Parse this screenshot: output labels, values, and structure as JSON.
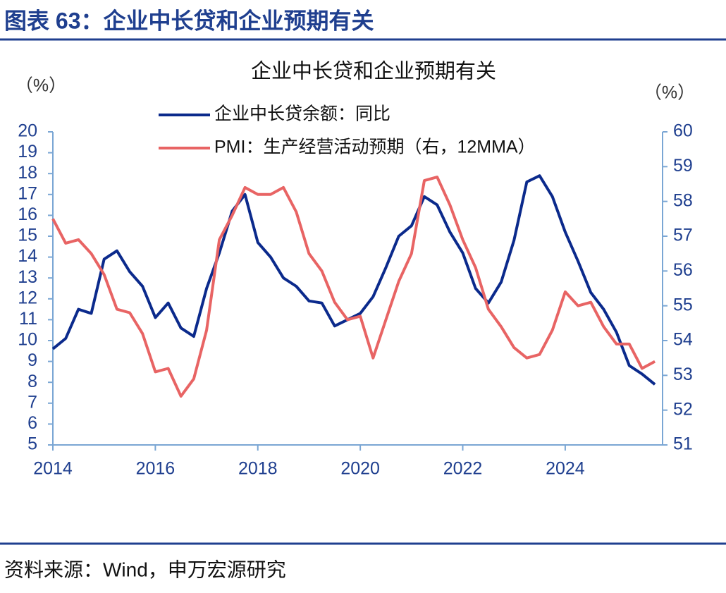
{
  "header": {
    "title": "图表 63：企业中长贷和企业预期有关"
  },
  "footer": {
    "source": "资料来源：Wind，申万宏源研究"
  },
  "chart_data": {
    "type": "line",
    "title": "企业中长贷和企业预期有关",
    "y_label": "（%）",
    "y2_label": "（%）",
    "x": [
      2014,
      2014.25,
      2014.5,
      2014.75,
      2015,
      2015.25,
      2015.5,
      2015.75,
      2016,
      2016.25,
      2016.5,
      2016.75,
      2017,
      2017.25,
      2017.5,
      2017.75,
      2018,
      2018.25,
      2018.5,
      2018.75,
      2019,
      2019.25,
      2019.5,
      2019.75,
      2020,
      2020.25,
      2020.5,
      2020.75,
      2021,
      2021.25,
      2021.5,
      2021.75,
      2022,
      2022.25,
      2022.5,
      2022.75,
      2023,
      2023.25,
      2023.5,
      2023.75,
      2024,
      2024.25,
      2024.5,
      2024.75,
      2025,
      2025.25,
      2025.5,
      2025.75
    ],
    "xlim": [
      2014,
      2025.9
    ],
    "xticks": [
      2014,
      2016,
      2018,
      2020,
      2022,
      2024
    ],
    "ylim": [
      5,
      20
    ],
    "yticks": [
      5,
      6,
      7,
      8,
      9,
      10,
      11,
      12,
      13,
      14,
      15,
      16,
      17,
      18,
      19,
      20
    ],
    "y2lim": [
      51,
      60
    ],
    "y2ticks": [
      51,
      52,
      53,
      54,
      55,
      56,
      57,
      58,
      59,
      60
    ],
    "series": [
      {
        "name": "企业中长贷余额：同比",
        "color": "#0b2a8c",
        "values": [
          9.6,
          10.1,
          11.5,
          11.3,
          13.9,
          14.3,
          13.3,
          12.6,
          11.1,
          11.8,
          10.6,
          10.2,
          12.5,
          14.2,
          16.2,
          17.0,
          14.7,
          14.0,
          13.0,
          12.6,
          11.9,
          11.8,
          10.7,
          11.0,
          11.3,
          12.1,
          13.5,
          15.0,
          15.5,
          16.9,
          16.5,
          15.2,
          14.2,
          12.5,
          11.8,
          12.8,
          14.8,
          17.6,
          17.9,
          16.9,
          15.2,
          13.8,
          12.3,
          11.5,
          10.4,
          8.8,
          8.4,
          7.9
        ]
      },
      {
        "name": "PMI：生产经营活动预期（右，12MMA）",
        "color": "#e86464",
        "axis": "y2",
        "values": [
          57.5,
          56.8,
          56.9,
          56.5,
          55.9,
          54.9,
          54.8,
          54.2,
          53.1,
          53.2,
          52.4,
          52.9,
          54.3,
          56.9,
          57.6,
          58.4,
          58.2,
          58.2,
          58.4,
          57.7,
          56.5,
          56.0,
          55.1,
          54.6,
          54.7,
          53.5,
          54.6,
          55.7,
          56.5,
          58.6,
          58.7,
          57.9,
          56.9,
          56.1,
          54.9,
          54.4,
          53.8,
          53.5,
          53.6,
          54.3,
          55.4,
          55.0,
          55.1,
          54.4,
          53.9,
          53.9,
          53.2,
          53.4
        ]
      }
    ]
  }
}
